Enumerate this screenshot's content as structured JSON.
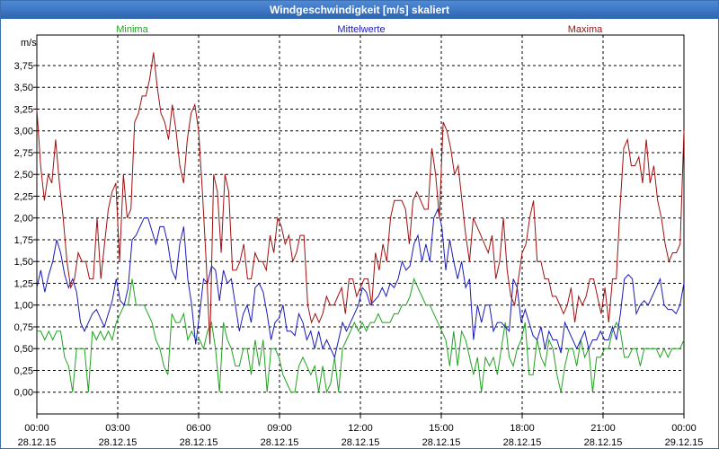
{
  "window": {
    "title": "Windgeschwindigkeit [m/s] skaliert"
  },
  "chart_data": {
    "type": "line",
    "title": "Windgeschwindigkeit [m/s] skaliert",
    "ylabel": "m/s",
    "ylim": [
      -0.25,
      4.1
    ],
    "xlim": [
      0,
      24
    ],
    "y_ticks": [
      "0,00",
      "0,25",
      "0,50",
      "0,75",
      "1,00",
      "1,25",
      "1,50",
      "1,75",
      "2,00",
      "2,25",
      "2,50",
      "2,75",
      "3,00",
      "3,25",
      "3,50",
      "3,75"
    ],
    "y_tick_values": [
      0,
      0.25,
      0.5,
      0.75,
      1,
      1.25,
      1.5,
      1.75,
      2,
      2.25,
      2.5,
      2.75,
      3,
      3.25,
      3.5,
      3.75
    ],
    "x_ticks": [
      {
        "time": "00:00",
        "date": "28.12.15",
        "h": 0
      },
      {
        "time": "03:00",
        "date": "28.12.15",
        "h": 3
      },
      {
        "time": "06:00",
        "date": "28.12.15",
        "h": 6
      },
      {
        "time": "09:00",
        "date": "28.12.15",
        "h": 9
      },
      {
        "time": "12:00",
        "date": "28.12.15",
        "h": 12
      },
      {
        "time": "15:00",
        "date": "28.12.15",
        "h": 15
      },
      {
        "time": "18:00",
        "date": "28.12.15",
        "h": 18
      },
      {
        "time": "21:00",
        "date": "28.12.15",
        "h": 21
      },
      {
        "time": "00:00",
        "date": "29.12.15",
        "h": 24
      }
    ],
    "legend": [
      "Minima",
      "Mittelwerte",
      "Maxima"
    ],
    "colors": {
      "Minima": "#1fa31f",
      "Mittelwerte": "#1a1ab8",
      "Maxima": "#a01010",
      "grid": "#000000",
      "axis": "#000000"
    },
    "x_step_hours": 0.16667,
    "series": [
      {
        "name": "Minima",
        "values": [
          0.7,
          0.7,
          0.6,
          0.7,
          0.6,
          0.7,
          0.7,
          0.4,
          0.3,
          0.0,
          0.5,
          0.5,
          0.5,
          0.0,
          0.7,
          0.6,
          0.7,
          0.6,
          0.7,
          0.6,
          0.8,
          0.9,
          1.0,
          1.0,
          1.3,
          1.0,
          1.0,
          1.0,
          0.9,
          0.8,
          0.6,
          0.5,
          0.3,
          0.2,
          0.9,
          0.8,
          0.8,
          0.9,
          0.6,
          0.7,
          0.6,
          0.6,
          0.5,
          0.7,
          0.8,
          0.5,
          0.0,
          0.8,
          0.6,
          0.5,
          0.3,
          0.3,
          0.5,
          0.5,
          0.2,
          0.6,
          0.3,
          0.6,
          0.0,
          0.5,
          0.5,
          0.4,
          0.2,
          0.1,
          0.0,
          0.0,
          0.3,
          0.4,
          0.3,
          0.2,
          0.3,
          0.0,
          0.3,
          0.0,
          0.1,
          0.4,
          0.0,
          0.5,
          0.6,
          0.7,
          0.8,
          0.7,
          0.8,
          0.7,
          0.8,
          0.8,
          0.9,
          0.8,
          0.8,
          0.8,
          0.9,
          0.9,
          1.0,
          1.0,
          1.1,
          1.3,
          1.2,
          1.1,
          1.0,
          1.0,
          0.9,
          0.8,
          0.7,
          0.6,
          0.3,
          0.7,
          0.3,
          0.7,
          0.6,
          0.4,
          0.2,
          0.4,
          0.0,
          0.4,
          0.3,
          0.4,
          0.2,
          0.5,
          0.8,
          0.4,
          0.3,
          0.5,
          0.6,
          0.8,
          0.2,
          0.2,
          0.6,
          0.4,
          0.3,
          0.6,
          0.5,
          0.2,
          0.0,
          0.3,
          0.5,
          0.5,
          0.3,
          0.6,
          0.4,
          0.5,
          0.0,
          0.4,
          0.4,
          0.5,
          0.5,
          0.7,
          0.8,
          0.7,
          0.4,
          0.4,
          0.5,
          0.5,
          0.3,
          0.5,
          0.5,
          0.5,
          0.5,
          0.4,
          0.5,
          0.4,
          0.5,
          0.5,
          0.5,
          0.6
        ]
      },
      {
        "name": "Mittelwerte",
        "values": [
          1.2,
          1.4,
          1.15,
          1.35,
          1.5,
          1.75,
          1.6,
          1.35,
          1.2,
          1.3,
          1.15,
          0.8,
          0.7,
          0.8,
          0.9,
          0.95,
          0.85,
          0.75,
          0.9,
          1.05,
          1.3,
          1.05,
          1.0,
          1.2,
          1.75,
          1.8,
          1.9,
          2.0,
          2.0,
          1.85,
          1.7,
          1.9,
          1.9,
          1.7,
          1.4,
          1.3,
          1.7,
          1.9,
          1.3,
          1.0,
          0.55,
          0.9,
          1.3,
          1.25,
          1.45,
          1.4,
          1.05,
          1.4,
          1.25,
          1.3,
          1.0,
          0.7,
          0.9,
          1.0,
          0.8,
          1.2,
          1.25,
          1.15,
          0.9,
          0.6,
          0.8,
          0.85,
          1.0,
          0.7,
          0.7,
          0.65,
          0.9,
          0.8,
          0.6,
          0.7,
          0.5,
          0.7,
          0.5,
          0.6,
          0.5,
          0.4,
          0.6,
          0.8,
          0.7,
          0.8,
          0.9,
          1.0,
          1.2,
          1.15,
          1.0,
          1.05,
          1.1,
          1.2,
          1.1,
          1.25,
          1.2,
          1.3,
          1.5,
          1.4,
          1.45,
          1.7,
          1.8,
          1.5,
          1.7,
          1.5,
          2.0,
          2.1,
          1.9,
          1.4,
          1.75,
          1.5,
          1.3,
          1.5,
          1.2,
          1.3,
          0.6,
          1.0,
          0.8,
          1.0,
          1.0,
          0.7,
          0.8,
          0.8,
          0.75,
          0.7,
          1.3,
          1.2,
          0.8,
          0.95,
          0.8,
          0.65,
          0.6,
          0.75,
          0.5,
          0.7,
          0.6,
          0.6,
          0.45,
          0.8,
          0.7,
          0.6,
          0.5,
          0.6,
          0.7,
          0.5,
          0.6,
          0.6,
          0.7,
          0.6,
          0.6,
          0.75,
          0.6,
          0.9,
          1.3,
          1.35,
          1.3,
          0.9,
          1.0,
          1.05,
          1.0,
          1.1,
          1.2,
          1.3,
          1.0,
          0.95,
          0.95,
          0.9,
          1.0,
          1.25
        ]
      },
      {
        "name": "Maxima",
        "values": [
          3.25,
          2.6,
          2.2,
          2.5,
          2.4,
          2.9,
          2.4,
          2.0,
          1.5,
          1.2,
          1.3,
          1.6,
          1.5,
          1.5,
          1.3,
          1.3,
          2.0,
          1.3,
          1.7,
          2.1,
          2.3,
          2.4,
          1.5,
          2.5,
          2.0,
          2.1,
          3.1,
          3.2,
          3.4,
          3.4,
          3.6,
          3.9,
          3.5,
          3.2,
          3.1,
          2.9,
          3.3,
          3.0,
          2.6,
          2.4,
          2.9,
          3.2,
          3.3,
          3.0,
          2.3,
          1.5,
          0.55,
          2.5,
          2.3,
          1.6,
          2.5,
          2.3,
          1.4,
          1.4,
          1.5,
          1.7,
          1.3,
          1.3,
          1.6,
          1.5,
          1.5,
          1.4,
          1.8,
          1.6,
          2.0,
          1.9,
          1.7,
          1.8,
          1.5,
          1.6,
          1.8,
          1.8,
          1.0,
          0.8,
          0.9,
          0.8,
          0.9,
          1.1,
          1.0,
          1.0,
          1.1,
          1.2,
          0.9,
          1.3,
          1.3,
          1.1,
          1.2,
          1.3,
          1.3,
          1.0,
          1.6,
          1.4,
          1.7,
          1.5,
          2.0,
          2.2,
          2.2,
          2.2,
          2.1,
          1.7,
          2.2,
          2.3,
          2.2,
          2.1,
          2.1,
          2.8,
          2.5,
          2.0,
          3.1,
          3.0,
          2.8,
          2.5,
          2.6,
          2.2,
          1.8,
          1.5,
          2.0,
          1.9,
          1.8,
          1.7,
          1.6,
          1.8,
          1.3,
          1.5,
          2.0,
          1.4,
          1.1,
          1.0,
          1.3,
          1.6,
          1.7,
          2.0,
          2.2,
          1.5,
          1.5,
          1.3,
          1.3,
          1.1,
          1.1,
          1.0,
          0.9,
          1.0,
          1.2,
          0.8,
          1.1,
          1.0,
          1.1,
          1.3,
          1.3,
          1.1,
          0.9,
          1.2,
          0.8,
          1.3,
          1.3,
          2.1,
          2.8,
          2.9,
          2.6,
          2.6,
          2.7,
          2.4,
          2.9,
          2.4,
          2.6,
          2.2,
          2.0,
          1.7,
          1.5,
          1.6,
          1.6,
          1.7,
          3.0
        ]
      }
    ]
  }
}
